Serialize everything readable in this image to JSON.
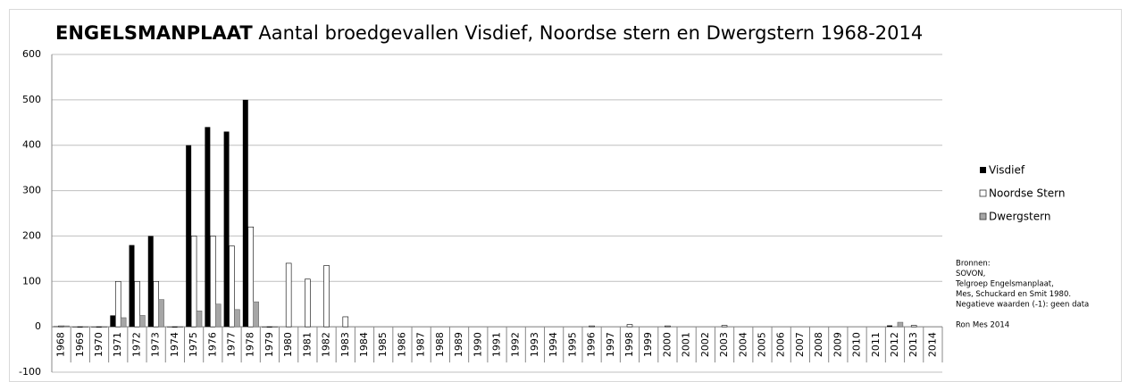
{
  "chart_data": {
    "type": "bar",
    "title_bold": "ENGELSMANPLAAT",
    "title": "Aantal broedgevallen Visdief, Noordse stern en Dwergstern 1968-2014",
    "categories": [
      "1968",
      "1969",
      "1970",
      "1971",
      "1972",
      "1973",
      "1974",
      "1975",
      "1976",
      "1977",
      "1978",
      "1979",
      "1980",
      "1981",
      "1982",
      "1983",
      "1984",
      "1985",
      "1986",
      "1987",
      "1988",
      "1989",
      "1990",
      "1991",
      "1992",
      "1993",
      "1994",
      "1995",
      "1996",
      "1997",
      "1998",
      "1999",
      "2000",
      "2001",
      "2002",
      "2003",
      "2004",
      "2005",
      "2006",
      "2007",
      "2008",
      "2009",
      "2010",
      "2011",
      "2012",
      "2013",
      "2014"
    ],
    "series": [
      {
        "name": "Visdief",
        "color": "#000000",
        "values": [
          1,
          -1,
          -1,
          25,
          180,
          200,
          -1,
          400,
          440,
          430,
          500,
          -1,
          0,
          0,
          0,
          0,
          0,
          0,
          0,
          0,
          0,
          0,
          0,
          0,
          0,
          0,
          0,
          0,
          0,
          0,
          0,
          0,
          0,
          0,
          0,
          0,
          0,
          0,
          0,
          0,
          0,
          0,
          0,
          0,
          3,
          0,
          0
        ]
      },
      {
        "name": "Noordse Stern",
        "color": "#ffffff",
        "values": [
          2,
          -1,
          -1,
          100,
          100,
          100,
          -1,
          200,
          200,
          178,
          220,
          -1,
          140,
          105,
          135,
          22,
          0,
          0,
          0,
          0,
          0,
          0,
          0,
          0,
          0,
          0,
          0,
          0,
          2,
          0,
          5,
          0,
          2,
          0,
          0,
          3,
          0,
          0,
          0,
          0,
          0,
          0,
          0,
          0,
          0,
          3,
          0
        ]
      },
      {
        "name": "Dwergstern",
        "color": "#a6a6a6",
        "values": [
          2,
          -1,
          -1,
          20,
          25,
          60,
          -1,
          35,
          50,
          38,
          55,
          -1,
          0,
          0,
          0,
          0,
          0,
          0,
          0,
          0,
          0,
          0,
          0,
          0,
          0,
          0,
          0,
          0,
          0,
          0,
          0,
          0,
          0,
          0,
          0,
          0,
          0,
          0,
          0,
          0,
          0,
          0,
          0,
          0,
          10,
          0,
          0
        ]
      }
    ],
    "ylim": [
      -100,
      600
    ],
    "yticks": [
      -100,
      0,
      100,
      200,
      300,
      400,
      500,
      600
    ],
    "grid": true,
    "legend": "right",
    "notes": [
      "Bronnen:",
      "SOVON,",
      "Telgroep Engelsmanplaat,",
      "Mes, Schuckard en Smit 1980.",
      "Negatieve waarden (-1): geen data",
      "",
      "Ron Mes 2014"
    ]
  }
}
